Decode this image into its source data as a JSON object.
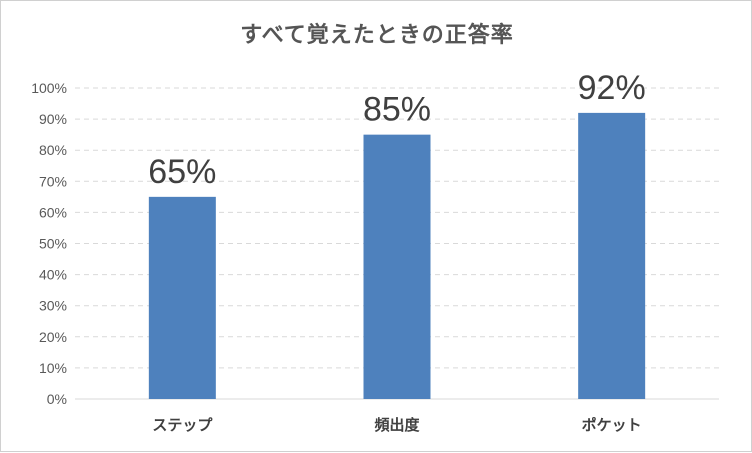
{
  "chart_data": {
    "type": "bar",
    "title": "すべて覚えたときの正答率",
    "categories": [
      "ステップ",
      "頻出度",
      "ポケット"
    ],
    "values": [
      65,
      85,
      92
    ],
    "data_labels": [
      "65%",
      "85%",
      "92%"
    ],
    "y_tick_labels": [
      "0%",
      "10%",
      "20%",
      "30%",
      "40%",
      "50%",
      "60%",
      "70%",
      "80%",
      "90%",
      "100%"
    ],
    "ylim": [
      0,
      100
    ],
    "grid": true,
    "legend": "none",
    "colors": {
      "bar": "#4e81bd",
      "grid": "#d9d9d9",
      "axis": "#d9d9d9"
    }
  }
}
